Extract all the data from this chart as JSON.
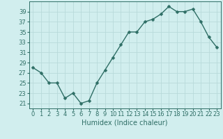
{
  "x": [
    0,
    1,
    2,
    3,
    4,
    5,
    6,
    7,
    8,
    9,
    10,
    11,
    12,
    13,
    14,
    15,
    16,
    17,
    18,
    19,
    20,
    21,
    22,
    23
  ],
  "y": [
    28,
    27,
    25,
    25,
    22,
    23,
    21,
    21.5,
    25,
    27.5,
    30,
    32.5,
    35,
    35,
    37,
    37.5,
    38.5,
    40,
    39,
    39,
    39.5,
    37,
    34,
    32
  ],
  "line_color": "#2e6e65",
  "marker": "D",
  "marker_size": 2.5,
  "linewidth": 1.0,
  "bg_color": "#d1eeee",
  "grid_color": "#b8dada",
  "xlabel": "Humidex (Indice chaleur)",
  "ylim": [
    20,
    41
  ],
  "yticks": [
    21,
    23,
    25,
    27,
    29,
    31,
    33,
    35,
    37,
    39
  ],
  "xlim": [
    -0.5,
    23.5
  ],
  "xticks": [
    0,
    1,
    2,
    3,
    4,
    5,
    6,
    7,
    8,
    9,
    10,
    11,
    12,
    13,
    14,
    15,
    16,
    17,
    18,
    19,
    20,
    21,
    22,
    23
  ],
  "xlabel_fontsize": 7.0,
  "tick_fontsize": 6.0,
  "tick_color": "#2e6e65"
}
